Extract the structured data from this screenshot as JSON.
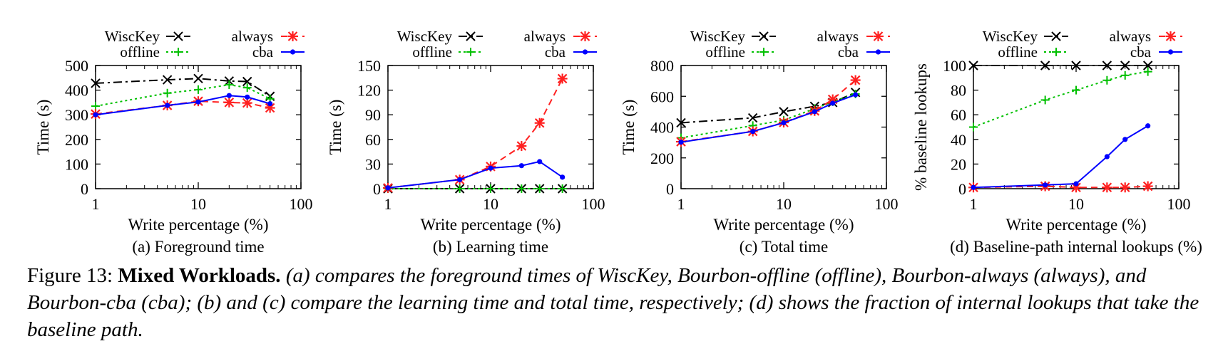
{
  "chart_data": [
    {
      "type": "line",
      "subtitle": "(a) Foreground time",
      "xlabel": "Write percentage (%)",
      "ylabel": "Time (s)",
      "xscale": "log",
      "xlim": [
        1,
        100
      ],
      "ylim": [
        0,
        500
      ],
      "xticks": [
        "1",
        "10",
        "100"
      ],
      "yticks": [
        "0",
        "100",
        "200",
        "300",
        "400",
        "500"
      ],
      "x": [
        1,
        5,
        10,
        20,
        30,
        50
      ],
      "legend": "top (outside, two columns)",
      "grid": false,
      "series": [
        {
          "name": "WiscKey",
          "color": "#000000",
          "marker": "x",
          "dash": "dash-dot",
          "values": [
            428,
            442,
            447,
            437,
            435,
            375
          ]
        },
        {
          "name": "offline",
          "color": "#00c000",
          "marker": "+",
          "dash": "dotted",
          "values": [
            335,
            388,
            402,
            422,
            410,
            365
          ]
        },
        {
          "name": "always",
          "color": "#ff2020",
          "marker": "star",
          "dash": "dashed",
          "values": [
            303,
            338,
            355,
            350,
            348,
            328
          ]
        },
        {
          "name": "cba",
          "color": "#0000ff",
          "marker": "dot",
          "dash": "solid",
          "values": [
            300,
            338,
            352,
            378,
            372,
            345
          ]
        }
      ]
    },
    {
      "type": "line",
      "subtitle": "(b) Learning time",
      "xlabel": "Write percentage (%)",
      "ylabel": "Time (s)",
      "xscale": "log",
      "xlim": [
        1,
        100
      ],
      "ylim": [
        0,
        150
      ],
      "xticks": [
        "1",
        "10",
        "100"
      ],
      "yticks": [
        "0",
        "30",
        "60",
        "90",
        "120",
        "150"
      ],
      "x": [
        1,
        5,
        10,
        20,
        30,
        50
      ],
      "legend": "top (outside, two columns)",
      "grid": false,
      "series": [
        {
          "name": "WiscKey",
          "color": "#000000",
          "marker": "x",
          "dash": "dash-dot",
          "values": [
            0,
            0,
            0,
            0,
            0,
            0
          ]
        },
        {
          "name": "offline",
          "color": "#00c000",
          "marker": "+",
          "dash": "dotted",
          "values": [
            0,
            0,
            0,
            0,
            0,
            0
          ]
        },
        {
          "name": "always",
          "color": "#ff2020",
          "marker": "star",
          "dash": "dashed",
          "values": [
            1,
            11,
            27,
            52,
            80,
            134
          ]
        },
        {
          "name": "cba",
          "color": "#0000ff",
          "marker": "dot",
          "dash": "solid",
          "values": [
            1,
            11,
            25,
            28,
            33,
            14
          ]
        }
      ]
    },
    {
      "type": "line",
      "subtitle": "(c) Total time",
      "xlabel": "Write percentage (%)",
      "ylabel": "Time (s)",
      "xscale": "log",
      "xlim": [
        1,
        100
      ],
      "ylim": [
        0,
        800
      ],
      "xticks": [
        "1",
        "10",
        "100"
      ],
      "yticks": [
        "0",
        "200",
        "400",
        "600",
        "800"
      ],
      "x": [
        1,
        5,
        10,
        20,
        30,
        50
      ],
      "legend": "top (outside, two columns)",
      "grid": false,
      "series": [
        {
          "name": "WiscKey",
          "color": "#000000",
          "marker": "x",
          "dash": "dash-dot",
          "values": [
            428,
            460,
            500,
            535,
            560,
            625
          ]
        },
        {
          "name": "offline",
          "color": "#00c000",
          "marker": "+",
          "dash": "dotted",
          "values": [
            330,
            410,
            445,
            520,
            565,
            615
          ]
        },
        {
          "name": "always",
          "color": "#ff2020",
          "marker": "star",
          "dash": "dashed",
          "values": [
            305,
            372,
            430,
            505,
            580,
            705
          ]
        },
        {
          "name": "cba",
          "color": "#0000ff",
          "marker": "dot",
          "dash": "solid",
          "values": [
            302,
            372,
            428,
            500,
            555,
            610
          ]
        }
      ]
    },
    {
      "type": "line",
      "subtitle": "(d) Baseline-path internal lookups (%)",
      "xlabel": "Write percentage (%)",
      "ylabel": "% baseline lookups",
      "xscale": "log",
      "xlim": [
        1,
        100
      ],
      "ylim": [
        0,
        100
      ],
      "xticks": [
        "1",
        "10",
        "100"
      ],
      "yticks": [
        "0",
        "20",
        "40",
        "60",
        "80",
        "100"
      ],
      "x": [
        1,
        5,
        10,
        20,
        30,
        50
      ],
      "legend": "top (outside, two columns)",
      "grid": false,
      "series": [
        {
          "name": "WiscKey",
          "color": "#000000",
          "marker": "x",
          "dash": "dash-dot",
          "values": [
            100,
            100,
            100,
            100,
            100,
            100
          ]
        },
        {
          "name": "offline",
          "color": "#00c000",
          "marker": "+",
          "dash": "dotted",
          "values": [
            50,
            72,
            80,
            88,
            92,
            95
          ]
        },
        {
          "name": "always",
          "color": "#ff2020",
          "marker": "star",
          "dash": "dashed",
          "values": [
            1,
            2,
            1,
            1,
            1,
            2
          ]
        },
        {
          "name": "cba",
          "color": "#0000ff",
          "marker": "dot",
          "dash": "solid",
          "values": [
            1,
            3,
            4,
            26,
            40,
            51
          ]
        }
      ]
    }
  ],
  "caption": {
    "number": "Figure 13:",
    "title": "Mixed Workloads.",
    "body": "(a) compares the foreground times of WiscKey, Bourbon-offline (offline), Bourbon-always (always), and Bourbon-cba (cba); (b) and (c) compare the learning time and total time, respectively; (d) shows the fraction of internal lookups that take the baseline path."
  }
}
